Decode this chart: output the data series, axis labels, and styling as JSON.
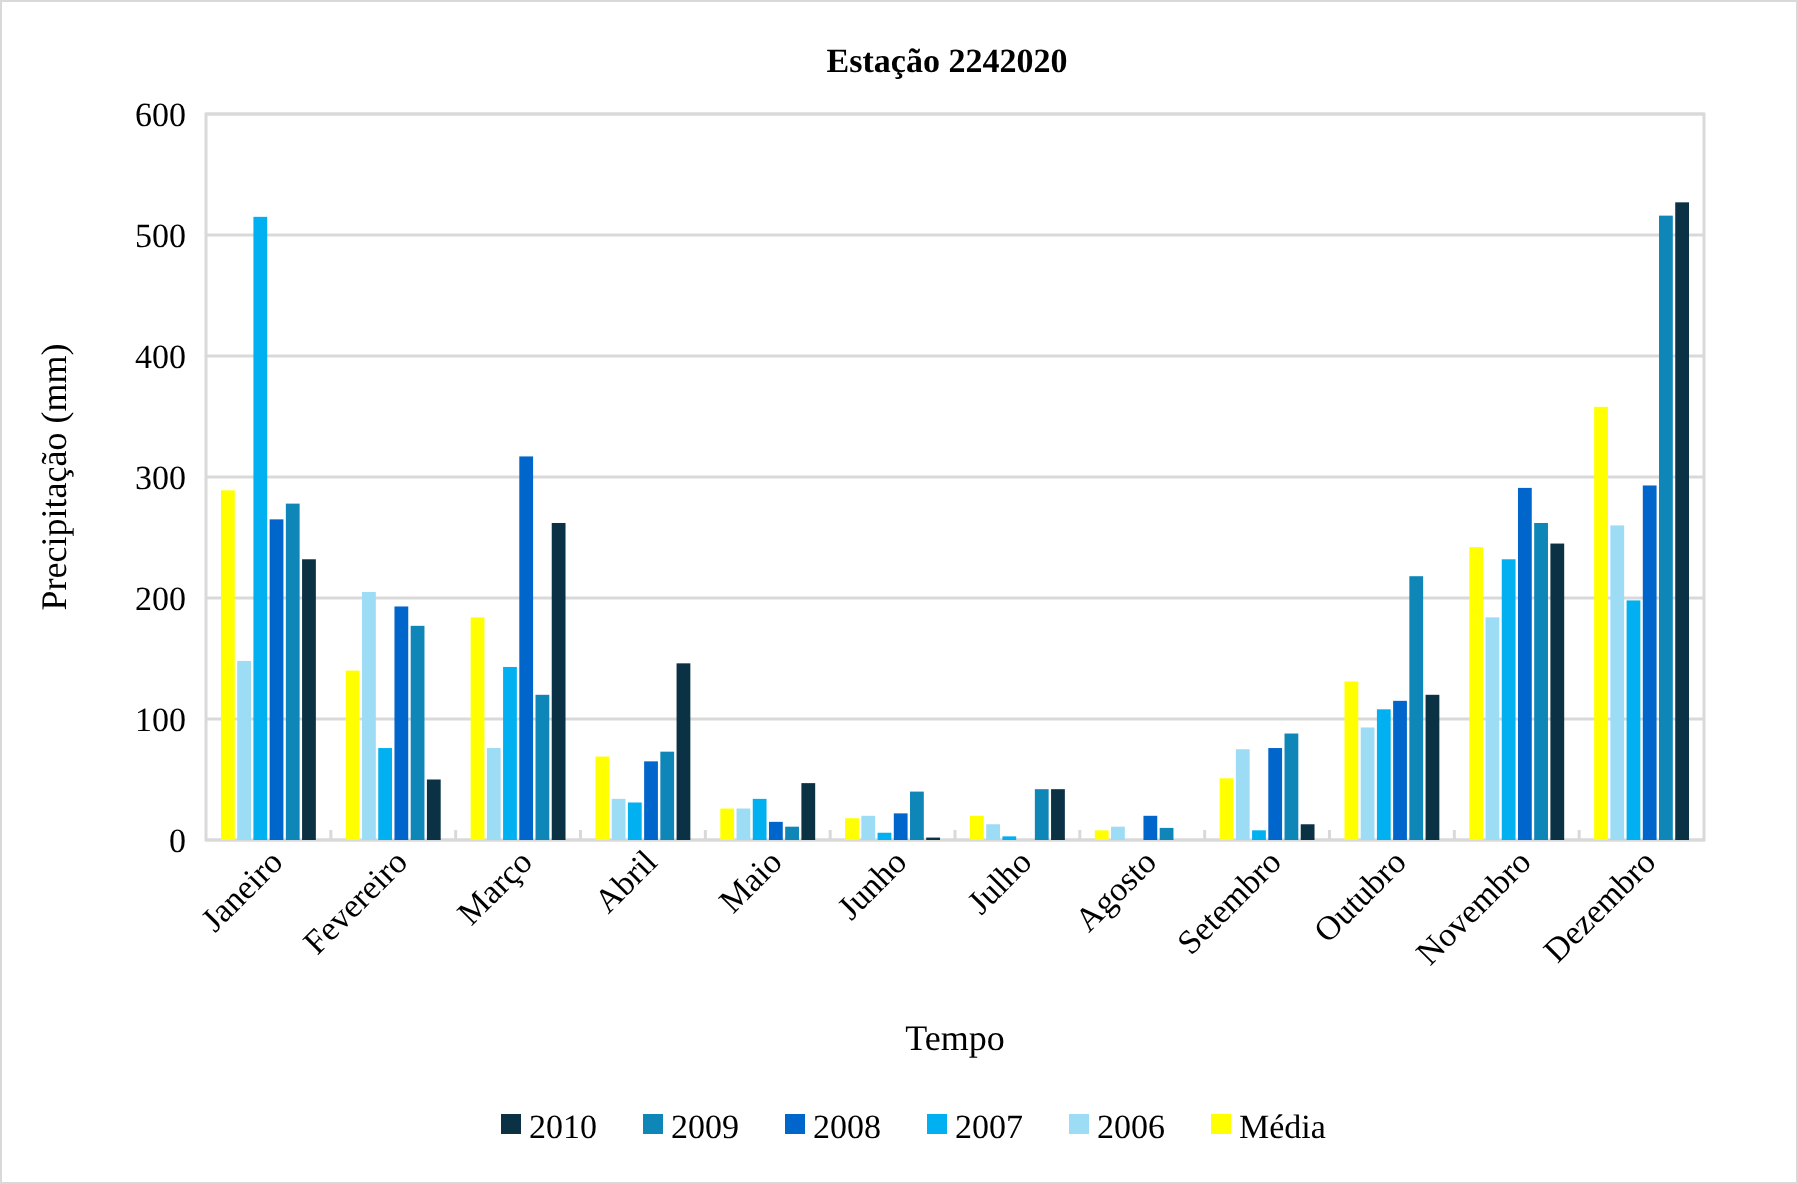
{
  "chart_data": {
    "type": "bar",
    "title": "Estação 2242020",
    "xlabel": "Tempo",
    "ylabel": "Precipitação (mm)",
    "categories": [
      "Janeiro",
      "Fevereiro",
      "Março",
      "Abril",
      "Maio",
      "Junho",
      "Julho",
      "Agosto",
      "Setembro",
      "Outubro",
      "Novembro",
      "Dezembro"
    ],
    "series": [
      {
        "name": "Média",
        "color": "#ffff00",
        "values": [
          289,
          140,
          184,
          69,
          26,
          18,
          20,
          8,
          51,
          131,
          242,
          358
        ]
      },
      {
        "name": "2006",
        "color": "#9ddcf5",
        "values": [
          148,
          205,
          76,
          34,
          26,
          20,
          13,
          11,
          75,
          93,
          184,
          260
        ]
      },
      {
        "name": "2007",
        "color": "#00b0f0",
        "values": [
          515,
          76,
          143,
          31,
          34,
          6,
          3,
          0,
          8,
          108,
          232,
          198
        ]
      },
      {
        "name": "2008",
        "color": "#0066cc",
        "values": [
          265,
          193,
          317,
          65,
          15,
          22,
          0,
          20,
          76,
          115,
          291,
          293
        ]
      },
      {
        "name": "2009",
        "color": "#0e86b8",
        "values": [
          278,
          177,
          120,
          73,
          11,
          40,
          42,
          10,
          88,
          218,
          262,
          516
        ]
      },
      {
        "name": "2010",
        "color": "#0b3144",
        "values": [
          232,
          50,
          262,
          146,
          47,
          2,
          42,
          0,
          13,
          120,
          245,
          527
        ]
      }
    ],
    "ylim": [
      0,
      600
    ],
    "yticks": [
      0,
      100,
      200,
      300,
      400,
      500,
      600
    ],
    "grid": "y",
    "legend": "bottom"
  }
}
